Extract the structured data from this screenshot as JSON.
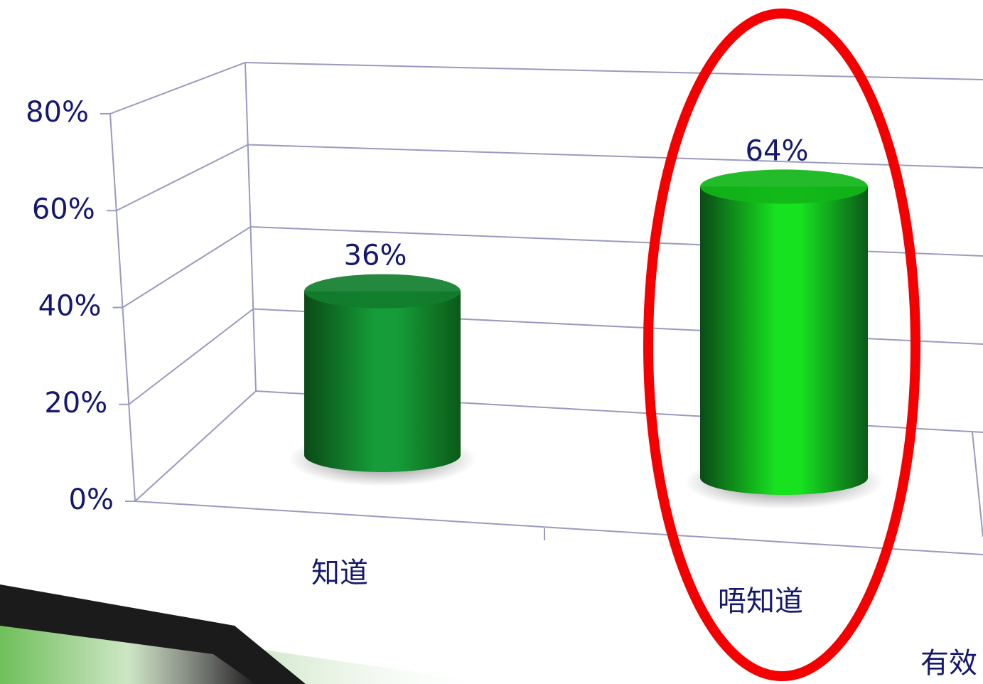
{
  "chart_data": {
    "type": "bar",
    "categories": [
      "知道",
      "唔知道"
    ],
    "values": [
      36,
      64
    ],
    "value_labels": [
      "36%",
      "64%"
    ],
    "colors": [
      "#169c38",
      "#16e21f"
    ],
    "ylim": [
      0,
      80
    ],
    "yticks": [
      {
        "value": 0,
        "label": "0%"
      },
      {
        "value": 20,
        "label": "20%"
      },
      {
        "value": 40,
        "label": "40%"
      },
      {
        "value": 60,
        "label": "60%"
      },
      {
        "value": 80,
        "label": "80%"
      }
    ],
    "grid": true,
    "annotation": "有效"
  }
}
